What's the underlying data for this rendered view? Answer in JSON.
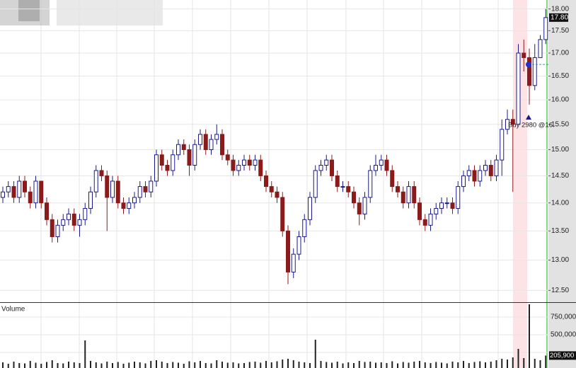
{
  "chart_data": [
    {
      "type": "candlestick",
      "log_scale": true,
      "grid": true,
      "up_color": "#1a1a8c",
      "down_color": "#8b1a1a",
      "open": [
        14.1,
        14.2,
        14.3,
        14.1,
        14.4,
        14.2,
        14.0,
        14.4,
        14.0,
        13.7,
        13.4,
        13.6,
        13.7,
        13.8,
        13.6,
        13.7,
        13.9,
        14.2,
        14.6,
        14.5,
        14.1,
        14.4,
        14.0,
        13.9,
        14.0,
        14.1,
        14.3,
        14.2,
        14.4,
        14.9,
        14.7,
        14.6,
        14.9,
        15.1,
        15.0,
        14.7,
        15.1,
        15.3,
        15.0,
        15.2,
        15.3,
        14.9,
        14.8,
        14.6,
        14.7,
        14.8,
        14.7,
        14.8,
        14.5,
        14.3,
        14.2,
        14.1,
        13.5,
        12.8,
        13.1,
        13.4,
        13.7,
        14.1,
        14.6,
        14.7,
        14.8,
        14.5,
        14.3,
        14.3,
        14.2,
        14.0,
        13.8,
        14.1,
        14.6,
        14.7,
        14.8,
        14.6,
        14.3,
        14.2,
        14.0,
        14.3,
        14.0,
        13.7,
        13.6,
        13.8,
        13.9,
        14.0,
        14.0,
        13.9,
        14.3,
        14.5,
        14.6,
        14.4,
        14.6,
        14.7,
        14.5,
        14.8,
        15.4,
        15.6,
        15.5,
        17.0,
        16.9,
        16.3,
        16.9,
        17.3
      ],
      "high": [
        14.3,
        14.4,
        14.4,
        14.5,
        14.5,
        14.3,
        14.5,
        14.4,
        14.1,
        13.8,
        13.7,
        13.8,
        13.9,
        13.9,
        13.8,
        14.0,
        14.3,
        14.7,
        14.7,
        14.6,
        14.5,
        14.5,
        14.1,
        14.1,
        14.2,
        14.4,
        14.4,
        14.5,
        15.0,
        15.0,
        14.8,
        15.0,
        15.2,
        15.2,
        15.1,
        15.2,
        15.4,
        15.4,
        15.3,
        15.5,
        15.4,
        15.0,
        14.9,
        14.8,
        14.9,
        14.9,
        14.9,
        14.9,
        14.6,
        14.4,
        14.3,
        14.2,
        13.6,
        13.2,
        13.5,
        13.8,
        14.2,
        14.7,
        14.8,
        14.9,
        14.9,
        14.6,
        14.4,
        14.4,
        14.3,
        14.1,
        14.2,
        14.7,
        14.9,
        14.9,
        14.9,
        14.7,
        14.4,
        14.3,
        14.4,
        14.4,
        14.1,
        13.8,
        13.9,
        14.0,
        14.1,
        14.1,
        14.1,
        14.4,
        14.6,
        14.7,
        14.7,
        14.7,
        14.8,
        14.8,
        14.9,
        15.6,
        15.8,
        15.8,
        17.2,
        17.3,
        17.1,
        17.2,
        17.4,
        18.0
      ],
      "low": [
        14.0,
        14.1,
        14.0,
        14.0,
        14.1,
        13.9,
        13.9,
        13.9,
        13.6,
        13.3,
        13.3,
        13.5,
        13.6,
        13.5,
        13.4,
        13.6,
        13.8,
        14.1,
        14.4,
        13.5,
        14.0,
        13.9,
        13.8,
        13.8,
        13.9,
        14.0,
        14.1,
        14.1,
        14.3,
        14.6,
        14.5,
        14.5,
        14.8,
        14.9,
        14.5,
        14.6,
        15.0,
        14.9,
        14.9,
        15.1,
        14.8,
        14.7,
        14.5,
        14.5,
        14.6,
        14.6,
        14.6,
        14.4,
        14.2,
        14.1,
        14.0,
        13.4,
        12.6,
        12.7,
        13.0,
        13.3,
        13.6,
        14.0,
        14.5,
        14.6,
        14.4,
        14.2,
        14.2,
        14.1,
        13.9,
        13.6,
        13.7,
        14.0,
        14.5,
        14.6,
        14.5,
        14.2,
        14.1,
        13.9,
        13.9,
        13.9,
        13.6,
        13.5,
        13.5,
        13.7,
        13.8,
        13.9,
        13.8,
        13.8,
        14.2,
        14.4,
        14.3,
        14.3,
        14.5,
        14.4,
        14.4,
        14.5,
        15.3,
        14.2,
        15.5,
        16.6,
        15.9,
        16.2,
        16.9,
        17.2
      ],
      "close": [
        14.2,
        14.3,
        14.1,
        14.4,
        14.2,
        14.0,
        14.4,
        14.0,
        13.7,
        13.4,
        13.6,
        13.7,
        13.8,
        13.6,
        13.7,
        13.9,
        14.2,
        14.6,
        14.5,
        14.1,
        14.4,
        14.0,
        13.9,
        14.0,
        14.1,
        14.3,
        14.2,
        14.4,
        14.9,
        14.7,
        14.6,
        14.9,
        15.1,
        15.0,
        14.7,
        15.1,
        15.3,
        15.0,
        15.2,
        15.3,
        14.9,
        14.8,
        14.6,
        14.7,
        14.8,
        14.7,
        14.8,
        14.5,
        14.3,
        14.2,
        14.1,
        13.5,
        12.8,
        13.1,
        13.4,
        13.7,
        14.1,
        14.6,
        14.7,
        14.8,
        14.5,
        14.3,
        14.3,
        14.2,
        14.0,
        13.8,
        14.1,
        14.6,
        14.7,
        14.8,
        14.6,
        14.3,
        14.2,
        14.0,
        14.3,
        14.0,
        13.7,
        13.6,
        13.8,
        13.9,
        14.0,
        14.0,
        13.9,
        14.3,
        14.5,
        14.6,
        14.4,
        14.6,
        14.7,
        14.5,
        14.8,
        15.4,
        15.6,
        15.5,
        17.0,
        16.9,
        16.3,
        16.9,
        17.3,
        17.8
      ],
      "ylim": [
        12.31,
        18.21
      ],
      "yticks": [
        {
          "value": 12.5,
          "label": "12.50"
        },
        {
          "value": 13,
          "label": "13.00"
        },
        {
          "value": 13.5,
          "label": "13.50"
        },
        {
          "value": 14,
          "label": "14.00"
        },
        {
          "value": 14.5,
          "label": "14.50"
        },
        {
          "value": 15,
          "label": "15.00"
        },
        {
          "value": 15.5,
          "label": "15.50"
        },
        {
          "value": 16,
          "label": "16.00"
        },
        {
          "value": 16.5,
          "label": "16.50"
        },
        {
          "value": 17,
          "label": "17.00"
        },
        {
          "value": 17.5,
          "label": "17.50"
        },
        {
          "value": 18,
          "label": "18.00"
        }
      ],
      "price_tag": {
        "value": 17.8,
        "label": "17.80"
      },
      "trade": {
        "label": "Buy 2980 @16.",
        "price": 16.75,
        "color": "#2233cc"
      }
    },
    {
      "type": "bar",
      "title": "Volume",
      "color": "#222222",
      "grid": true,
      "values": [
        110000,
        90000,
        120000,
        100000,
        95000,
        130000,
        105000,
        90000,
        115000,
        140000,
        100000,
        95000,
        120000,
        110000,
        100000,
        420000,
        130000,
        110000,
        95000,
        120000,
        100000,
        115000,
        90000,
        105000,
        120000,
        110000,
        95000,
        130000,
        140000,
        120000,
        100000,
        115000,
        105000,
        90000,
        125000,
        110000,
        130000,
        100000,
        95000,
        140000,
        120000,
        105000,
        110000,
        95000,
        100000,
        115000,
        120000,
        105000,
        130000,
        110000,
        125000,
        150000,
        160000,
        140000,
        120000,
        110000,
        100000,
        430000,
        130000,
        115000,
        105000,
        120000,
        95000,
        110000,
        100000,
        130000,
        115000,
        120000,
        105000,
        110000,
        100000,
        125000,
        95000,
        115000,
        105000,
        120000,
        130000,
        110000,
        100000,
        115000,
        105000,
        95000,
        120000,
        110000,
        130000,
        100000,
        115000,
        125000,
        110000,
        120000,
        140000,
        160000,
        150000,
        180000,
        300000,
        170000,
        930000,
        160000,
        140000,
        205900
      ],
      "ylim": [
        0,
        950000
      ],
      "yticks": [
        {
          "value": 250000,
          "label": ""
        },
        {
          "value": 500000,
          "label": "500,000"
        },
        {
          "value": 750000,
          "label": "750,000"
        }
      ],
      "value_tag": {
        "value": 205900,
        "label": "205,900"
      }
    }
  ]
}
